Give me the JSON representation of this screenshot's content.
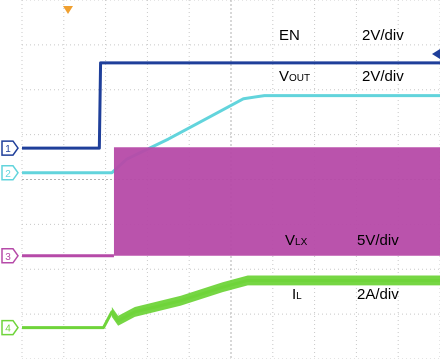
{
  "chart_data": {
    "type": "line",
    "title": "",
    "xlabel": "",
    "ylabel": "",
    "grid": true,
    "series": [
      {
        "name": "EN",
        "scale": "2V/div",
        "marker": "1",
        "color": "#1f3f9a",
        "points": [
          [
            0,
            2.7
          ],
          [
            1.85,
            2.7
          ],
          [
            1.88,
            4.6
          ],
          [
            10,
            4.6
          ]
        ]
      },
      {
        "name": "VOUT",
        "name_main": "V",
        "name_sub": "OUT",
        "scale": "2V/div",
        "marker": "2",
        "color": "#62d4dc",
        "points": [
          [
            0,
            2.15
          ],
          [
            2.15,
            2.15
          ],
          [
            2.5,
            2.45
          ],
          [
            3.5,
            2.9
          ],
          [
            4.5,
            3.4
          ],
          [
            5.3,
            3.8
          ],
          [
            5.8,
            3.87
          ],
          [
            10,
            3.87
          ]
        ]
      },
      {
        "name": "VLX",
        "name_main": "V",
        "name_sub": "LX",
        "scale": "5V/div",
        "marker": "3",
        "color": "#b64aa8",
        "points": [
          [
            0,
            0.3
          ],
          [
            2.2,
            0.3
          ]
        ],
        "band": {
          "x_start": 2.2,
          "x_end": 10,
          "low": 0.3,
          "high": 2.72
        }
      },
      {
        "name": "IL",
        "name_main": "I",
        "name_sub": "L",
        "scale": "2A/div",
        "marker": "4",
        "color": "#6fd43a",
        "points": [
          [
            0,
            -1.3
          ],
          [
            1.95,
            -1.3
          ],
          [
            2.15,
            -0.95
          ],
          [
            2.3,
            -1.15
          ],
          [
            2.7,
            -0.95
          ],
          [
            3.8,
            -0.7
          ],
          [
            4.8,
            -0.4
          ],
          [
            5.4,
            -0.25
          ],
          [
            10,
            -0.25
          ]
        ],
        "band": {
          "x_start": 2.15,
          "x_end": 10,
          "width": 0.22
        }
      }
    ],
    "xlim": [
      0,
      10
    ],
    "ylim": [
      -2,
      6
    ]
  }
}
